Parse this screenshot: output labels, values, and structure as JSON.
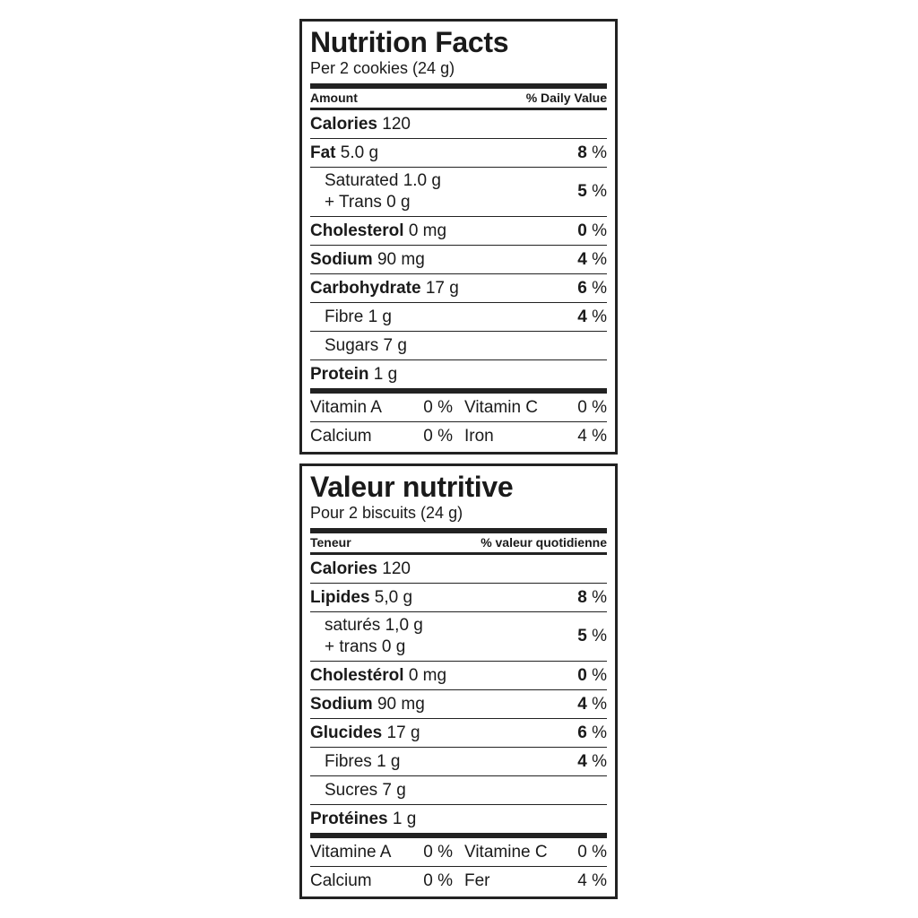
{
  "labels": [
    {
      "title": "Nutrition Facts",
      "serving": "Per 2 cookies (24 g)",
      "amount_header": "Amount",
      "dv_header": "% Daily Value",
      "percent": "%",
      "rows": [
        {
          "name": "Calories",
          "amount": "120"
        },
        {
          "name": "Fat",
          "amount": "5.0 g",
          "dv": "8"
        },
        {
          "name": "Saturated",
          "amount": "1.0 g",
          "line2": "+ Trans 0 g",
          "dv": "5",
          "indent": true
        },
        {
          "name": "Cholesterol",
          "amount": "0 mg",
          "dv": "0"
        },
        {
          "name": "Sodium",
          "amount": "90 mg",
          "dv": "4"
        },
        {
          "name": "Carbohydrate",
          "amount": "17 g",
          "dv": "6"
        },
        {
          "name": "Fibre",
          "amount": "1 g",
          "dv": "4",
          "indent": true
        },
        {
          "name": "Sugars",
          "amount": "7 g",
          "indent": true
        },
        {
          "name": "Protein",
          "amount": "1 g"
        }
      ],
      "vitamins": [
        [
          {
            "name": "Vitamin A",
            "dv": "0"
          },
          {
            "name": "Vitamin C",
            "dv": "0"
          }
        ],
        [
          {
            "name": "Calcium",
            "dv": "0"
          },
          {
            "name": "Iron",
            "dv": "4"
          }
        ]
      ]
    },
    {
      "title": "Valeur nutritive",
      "serving": "Pour 2 biscuits (24 g)",
      "amount_header": "Teneur",
      "dv_header": "% valeur quotidienne",
      "percent": "%",
      "rows": [
        {
          "name": "Calories",
          "amount": "120"
        },
        {
          "name": "Lipides",
          "amount": "5,0 g",
          "dv": "8"
        },
        {
          "name": "saturés",
          "amount": "1,0 g",
          "line2": "+ trans 0 g",
          "dv": "5",
          "indent": true
        },
        {
          "name": "Cholestérol",
          "amount": "0 mg",
          "dv": "0"
        },
        {
          "name": "Sodium",
          "amount": "90 mg",
          "dv": "4"
        },
        {
          "name": "Glucides",
          "amount": "17 g",
          "dv": "6"
        },
        {
          "name": "Fibres",
          "amount": "1 g",
          "dv": "4",
          "indent": true
        },
        {
          "name": "Sucres",
          "amount": "7 g",
          "indent": true
        },
        {
          "name": "Protéines",
          "amount": "1 g"
        }
      ],
      "vitamins": [
        [
          {
            "name": "Vitamine A",
            "dv": "0"
          },
          {
            "name": "Vitamine C",
            "dv": "0"
          }
        ],
        [
          {
            "name": "Calcium",
            "dv": "0"
          },
          {
            "name": "Fer",
            "dv": "4"
          }
        ]
      ]
    }
  ]
}
